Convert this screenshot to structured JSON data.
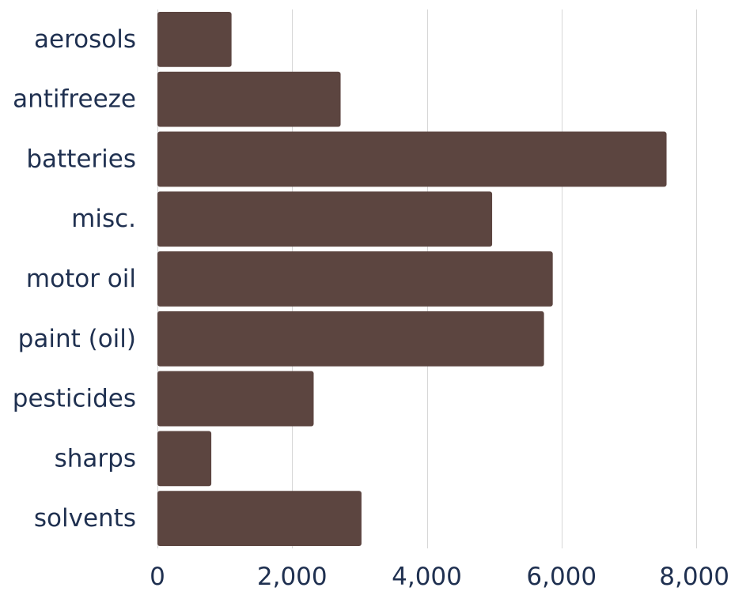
{
  "chart_data": {
    "type": "bar",
    "orientation": "horizontal",
    "categories": [
      "aerosols",
      "antifreeze",
      "batteries",
      "misc.",
      "motor oil",
      "paint (oil)",
      "pesticides",
      "sharps",
      "solvents"
    ],
    "values": [
      1100,
      2720,
      7560,
      4970,
      5870,
      5740,
      2320,
      800,
      3030
    ],
    "title": "",
    "xlabel": "",
    "ylabel": "",
    "xlim": [
      0,
      8000
    ],
    "x_ticks": [
      0,
      2000,
      4000,
      6000,
      8000
    ],
    "x_tick_labels": [
      "0",
      "2,000",
      "4,000",
      "6,000",
      "8,000"
    ],
    "grid": "vertical",
    "legend": "none",
    "bar_color": "#5c4540",
    "text_color": "#1f3050",
    "grid_color": "#d6d6d6"
  }
}
